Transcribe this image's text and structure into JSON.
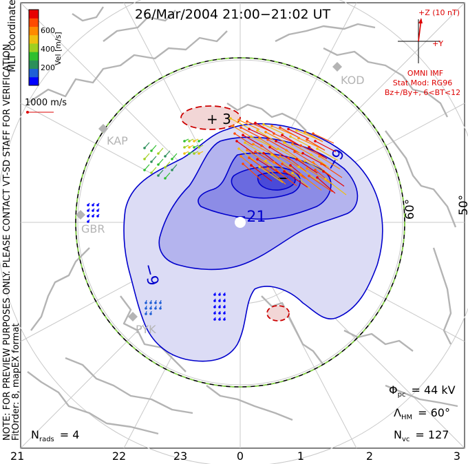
{
  "title": "26/Mar/2004 21:00−21:02 UT",
  "side_note": {
    "line1": "NOTE: FOR PREVIEW PURPOSES ONLY. PLEASE CONTACT VT-SD STAFF FOR VERIFICATION.",
    "line2": "FitOrder: 8, mapEX format"
  },
  "coords_label": "MLT coordinates",
  "color_scale": {
    "label": "Vel [m/s]",
    "ticks": [
      "600",
      "400",
      "200"
    ],
    "colors": [
      "#0000ff",
      "#1f5fd6",
      "#2c8f5a",
      "#2ebf2e",
      "#9fd020",
      "#f0c010",
      "#ff8a00",
      "#ff4a00",
      "#e60000"
    ]
  },
  "reference_vector": {
    "label": "1000 m/s",
    "color": "#dd0000"
  },
  "imf": {
    "z_label": "+Z (10 nT)",
    "y_label": "+Y",
    "source": "OMNI IMF",
    "stat_mod": "Stat Mod: RG96",
    "condition": "Bz+/By+, 6<BT<12",
    "color": "#dd0000"
  },
  "radars": [
    {
      "code": "KOD"
    },
    {
      "code": "KAP"
    },
    {
      "code": "GBR"
    },
    {
      "code": "PYK"
    }
  ],
  "contour_labels": {
    "positive": "+ 3",
    "negative_outer_east": "−9",
    "negative_outer_west": "−9",
    "negative_inner": "−21",
    "minimum_marker": "−"
  },
  "latitude_labels": [
    "60°",
    "50°"
  ],
  "mlt_axis": [
    "21",
    "22",
    "23",
    "0",
    "1",
    "2",
    "3"
  ],
  "stats": {
    "phi_pc": {
      "symbol": "Φ",
      "sub": "pc",
      "value": "= 44 kV"
    },
    "lambda_hm": {
      "symbol": "Λ",
      "sub": "HM",
      "value": "= 60°"
    },
    "n_vc": {
      "symbol": "N",
      "sub": "vc",
      "value": "= 127"
    },
    "n_rads": {
      "symbol": "N",
      "sub": "rads",
      "value": "= 4"
    }
  },
  "colors": {
    "negative_fill": "#4a4ae6",
    "positive_fill": "#e6b4b4",
    "negative_line": "#0000cc",
    "positive_line": "#cc0000",
    "coastline": "#b4b4b4",
    "grid": "#c8c8c8",
    "hm_boundary_dash": "#88dd44"
  }
}
